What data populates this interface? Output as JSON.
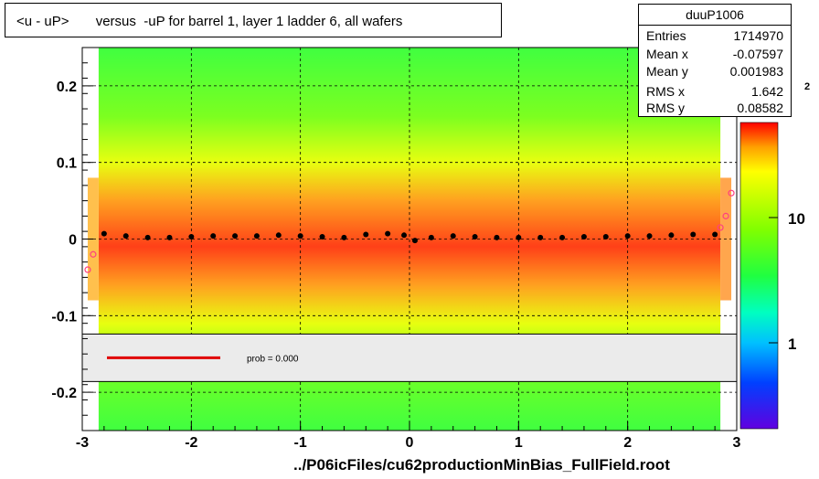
{
  "title": "<u - uP>       versus  -uP for barrel 1, layer 1 ladder 6, all wafers",
  "stats": {
    "name": "duuP1006",
    "rows": [
      {
        "key": "Entries",
        "value": "1714970"
      },
      {
        "key": "Mean x",
        "value": "-0.07597"
      },
      {
        "key": "Mean y",
        "value": "0.001983"
      },
      {
        "key": "RMS x",
        "value": "1.642"
      },
      {
        "key": "RMS y",
        "value": "0.08582"
      }
    ]
  },
  "footer": "../P06icFiles/cu62productionMinBias_FullField.root",
  "legend": {
    "label": "prob = 0.000",
    "line_color": "#e00000"
  },
  "colors": {
    "profile_points": "#000000",
    "fit_points": "#ff4080",
    "frame": "#000000"
  },
  "chart_data": {
    "type": "heatmap",
    "title": "<u - uP>       versus  -uP for barrel 1, layer 1 ladder 6, all wafers",
    "xlabel": "",
    "ylabel": "",
    "xlim": [
      -3,
      3
    ],
    "ylim": [
      -0.25,
      0.25
    ],
    "x_ticks": [
      "-3",
      "-2",
      "-1",
      "0",
      "1",
      "2",
      "3"
    ],
    "y_ticks": [
      "-0.2",
      "-0.1",
      "0",
      "0.1",
      "0.2"
    ],
    "grid": true,
    "colorbar": {
      "scale": "log",
      "tick_labels": [
        "1",
        "10"
      ],
      "partial_label": "2"
    },
    "profile": {
      "x": [
        -2.8,
        -2.6,
        -2.4,
        -2.2,
        -2.0,
        -1.8,
        -1.6,
        -1.4,
        -1.2,
        -1.0,
        -0.8,
        -0.6,
        -0.4,
        -0.2,
        -0.05,
        0.05,
        0.2,
        0.4,
        0.6,
        0.8,
        1.0,
        1.2,
        1.4,
        1.6,
        1.8,
        2.0,
        2.2,
        2.4,
        2.6,
        2.8
      ],
      "y": [
        0.007,
        0.004,
        0.002,
        0.002,
        0.003,
        0.004,
        0.004,
        0.004,
        0.005,
        0.004,
        0.003,
        0.002,
        0.006,
        0.007,
        0.005,
        -0.002,
        0.002,
        0.004,
        0.003,
        0.002,
        0.002,
        0.002,
        0.002,
        0.003,
        0.003,
        0.004,
        0.004,
        0.005,
        0.006,
        0.006
      ]
    },
    "fit_points": {
      "x": [
        -2.95,
        -2.9,
        2.85,
        2.9,
        2.95
      ],
      "y": [
        -0.04,
        -0.02,
        0.015,
        0.03,
        0.06
      ]
    },
    "legend": {
      "entries": [
        "prob = 0.000"
      ],
      "placement": "lower band inside plot"
    }
  }
}
